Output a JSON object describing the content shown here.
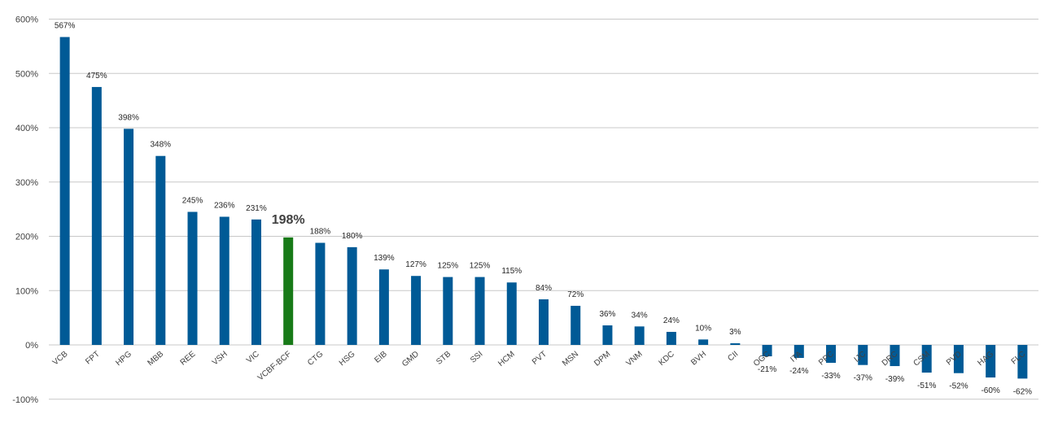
{
  "chart_data": {
    "type": "bar",
    "categories": [
      "VCB",
      "FPT",
      "HPG",
      "MBB",
      "REE",
      "VSH",
      "VIC",
      "VCBF-BCF",
      "CTG",
      "HSG",
      "EIB",
      "GMD",
      "STB",
      "SSI",
      "HCM",
      "PVT",
      "MSN",
      "DPM",
      "VNM",
      "KDC",
      "BVH",
      "CII",
      "OGC",
      "ITA",
      "PPC",
      "IJC",
      "DRC",
      "CSM",
      "PVD",
      "HAG",
      "FLC"
    ],
    "values": [
      567,
      475,
      398,
      348,
      245,
      236,
      231,
      198,
      188,
      180,
      139,
      127,
      125,
      125,
      115,
      84,
      72,
      36,
      34,
      24,
      10,
      3,
      -21,
      -24,
      -33,
      -37,
      -39,
      -51,
      -52,
      -60,
      -62
    ],
    "data_labels": [
      "567%",
      "475%",
      "398%",
      "348%",
      "245%",
      "236%",
      "231%",
      "198%",
      "188%",
      "180%",
      "139%",
      "127%",
      "125%",
      "125%",
      "115%",
      "84%",
      "72%",
      "36%",
      "34%",
      "24%",
      "10%",
      "3%",
      "-21%",
      "-24%",
      "-33%",
      "-37%",
      "-39%",
      "-51%",
      "-52%",
      "-60%",
      "-62%"
    ],
    "highlight_category": "VCBF-BCF",
    "y_ticks": [
      "600%",
      "500%",
      "400%",
      "300%",
      "200%",
      "100%",
      "0%",
      "-100%"
    ],
    "y_tick_values": [
      600,
      500,
      400,
      300,
      200,
      100,
      0,
      -100
    ],
    "ylim": [
      -100,
      600
    ],
    "grid": true,
    "legend": "none",
    "title": "",
    "xlabel": "",
    "ylabel": "",
    "colors": {
      "bar": "#005a96",
      "highlight": "#187a18",
      "grid": "#c8c8c8"
    }
  }
}
